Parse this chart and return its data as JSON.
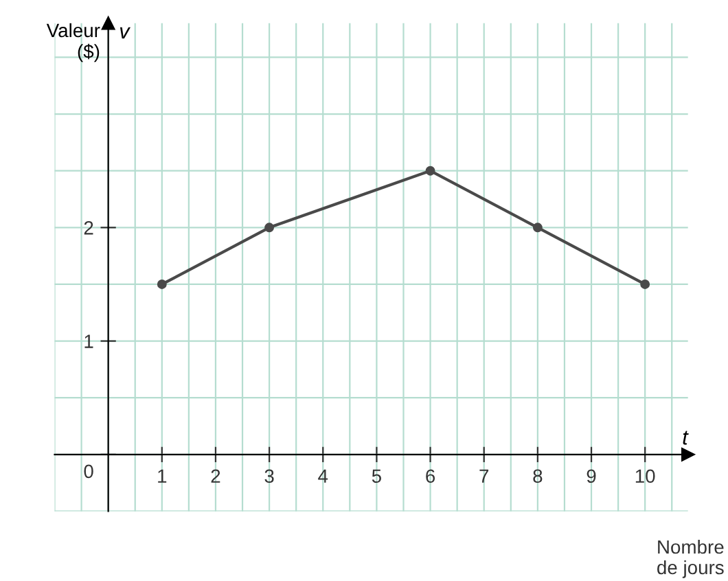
{
  "chart_data": {
    "type": "line",
    "x": [
      1,
      3,
      6,
      8,
      10
    ],
    "series": [
      {
        "color": "#4a4a4a",
        "values": [
          1.5,
          2,
          2.5,
          2,
          1.5
        ]
      }
    ],
    "xlim": [
      -1,
      10.8
    ],
    "ylim": [
      -0.5,
      3.8
    ],
    "xticks": [
      1,
      2,
      3,
      4,
      5,
      6,
      7,
      8,
      9,
      10
    ],
    "yticks": [
      {
        "value": 0,
        "label": "0"
      },
      1,
      2
    ],
    "ylabel": "Valeur\n($)",
    "y2label": "v",
    "xlabel": "Nombre\nde jours",
    "annotations": [
      "t"
    ],
    "grid": true,
    "marker": "circle",
    "line_style": "solid",
    "legend": false
  }
}
